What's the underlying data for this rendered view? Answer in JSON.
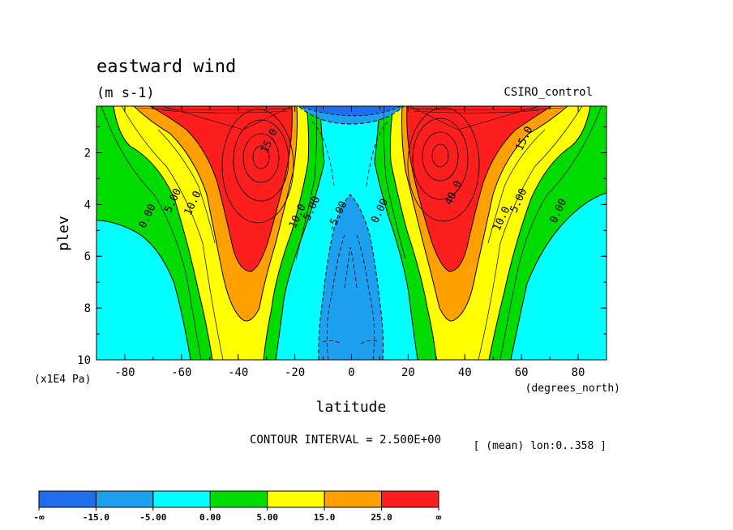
{
  "chart_data": {
    "type": "contour",
    "title": "eastward wind",
    "units": "(m s-1)",
    "model": "CSIRO_control",
    "xlabel": "latitude",
    "x_units": "(degrees_north)",
    "ylabel": "plev",
    "y_units": "(x1E4 Pa)",
    "xlim": [
      -90,
      90
    ],
    "ylim": [
      10,
      0.2
    ],
    "x_ticks": [
      -80,
      -60,
      -40,
      -20,
      0,
      20,
      40,
      60,
      80
    ],
    "x_tick_labels": [
      "-80",
      "-60",
      "-40",
      "-20",
      "0",
      "20",
      "40",
      "60",
      "80"
    ],
    "y_ticks": [
      2,
      4,
      6,
      8,
      10
    ],
    "y_tick_labels": [
      "2",
      "4",
      "6",
      "8",
      "10"
    ],
    "contour_interval_text": "CONTOUR INTERVAL = 2.500E+00",
    "mean_note": "[ (mean) lon:0..358 ]",
    "jets": [
      {
        "lat": -33,
        "plev": 2.2,
        "max_speed": 42
      },
      {
        "lat": 32,
        "plev": 2.1,
        "max_speed": 42
      }
    ],
    "contour_labels": [
      {
        "text": "0.00",
        "lat": -71,
        "plev": 4.5
      },
      {
        "text": "5.00",
        "lat": -62,
        "plev": 3.9
      },
      {
        "text": "10.0",
        "lat": -55,
        "plev": 4.0
      },
      {
        "text": "15.0",
        "lat": -28,
        "plev": 1.6
      },
      {
        "text": "10.0",
        "lat": -18,
        "plev": 4.5
      },
      {
        "text": "5.00",
        "lat": -13,
        "plev": 4.2
      },
      {
        "text": "-5.00",
        "lat": -4,
        "plev": 4.5
      },
      {
        "text": "0.00",
        "lat": 11,
        "plev": 4.3
      },
      {
        "text": "40.0",
        "lat": 37,
        "plev": 3.6
      },
      {
        "text": "15.0",
        "lat": 62,
        "plev": 1.5
      },
      {
        "text": "10.0",
        "lat": 54,
        "plev": 4.6
      },
      {
        "text": "5.00",
        "lat": 60,
        "plev": 3.9
      },
      {
        "text": "0.00",
        "lat": 74,
        "plev": 4.3
      }
    ],
    "colorbar": {
      "bins": [
        {
          "color": "#1e6eeb",
          "range": "< -15"
        },
        {
          "color": "#1ea0f0",
          "range": "-15 to -5"
        },
        {
          "color": "#00ffff",
          "range": "-5 to 0"
        },
        {
          "color": "#00dc00",
          "range": "0 to 5"
        },
        {
          "color": "#ffff00",
          "range": "5 to 15"
        },
        {
          "color": "#ffa000",
          "range": "15 to 25"
        },
        {
          "color": "#ff1e1e",
          "range": "> 25"
        }
      ],
      "labels": [
        "-∞",
        "-15.0",
        "-5.00",
        "0.00",
        "5.00",
        "15.0",
        "25.0",
        "∞"
      ]
    },
    "colors": {
      "very_negative": "#1e6eeb",
      "negative": "#1ea0f0",
      "weak_negative": "#00ffff",
      "weak_positive": "#00dc00",
      "positive": "#ffff00",
      "strong": "#ffa000",
      "jet": "#ff1e1e",
      "jet_core": "#c80000"
    }
  }
}
